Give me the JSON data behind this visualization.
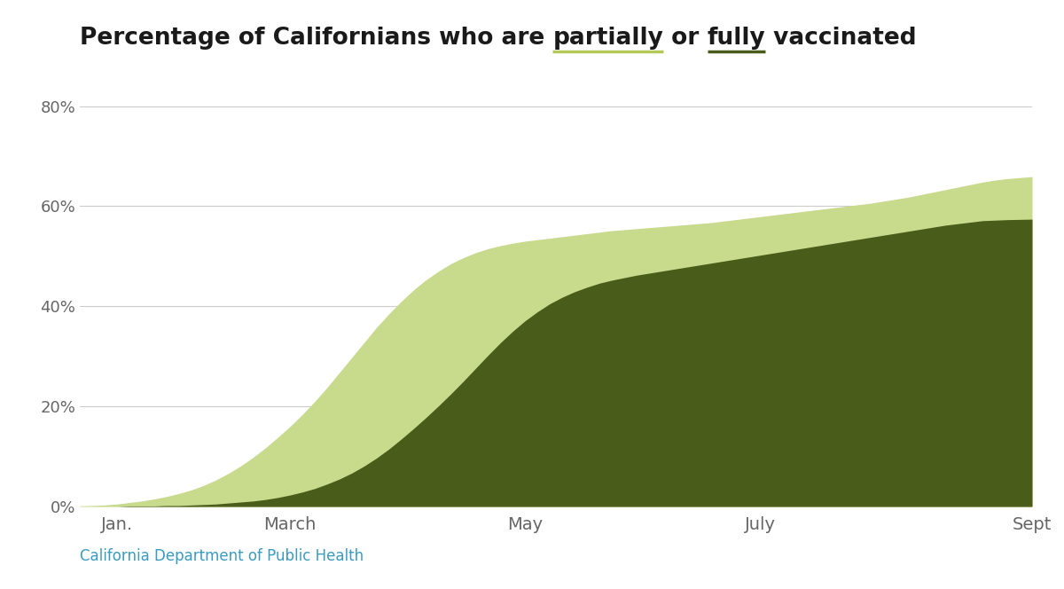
{
  "color_partial": "#c8da8c",
  "color_fully": "#4a5c1a",
  "color_partial_underline": "#b5c85a",
  "color_fully_underline": "#4a5c1a",
  "title_fontsize": 19,
  "source_text": "California Department of Public Health",
  "source_color": "#3a9bbf",
  "background_color": "#ffffff",
  "yticks": [
    0,
    20,
    40,
    60,
    80
  ],
  "xtick_labels": [
    "Jan.",
    "March",
    "May",
    "July",
    "Sept"
  ],
  "partial_data": [
    0.1,
    0.2,
    0.3,
    0.5,
    0.8,
    1.1,
    1.5,
    2.0,
    2.6,
    3.3,
    4.2,
    5.3,
    6.6,
    8.1,
    9.8,
    11.7,
    13.8,
    16.0,
    18.4,
    21.0,
    23.8,
    26.8,
    29.8,
    32.8,
    35.8,
    38.5,
    41.0,
    43.3,
    45.3,
    47.0,
    48.5,
    49.7,
    50.7,
    51.5,
    52.1,
    52.6,
    53.0,
    53.3,
    53.6,
    53.9,
    54.2,
    54.5,
    54.8,
    55.1,
    55.3,
    55.5,
    55.7,
    55.9,
    56.1,
    56.3,
    56.5,
    56.7,
    57.0,
    57.3,
    57.6,
    57.9,
    58.2,
    58.5,
    58.8,
    59.1,
    59.4,
    59.7,
    60.0,
    60.3,
    60.6,
    61.0,
    61.4,
    61.8,
    62.3,
    62.8,
    63.3,
    63.8,
    64.3,
    64.8,
    65.2,
    65.5,
    65.7,
    65.9
  ],
  "fully_data": [
    0.0,
    0.0,
    0.0,
    0.0,
    0.1,
    0.1,
    0.1,
    0.2,
    0.2,
    0.3,
    0.4,
    0.5,
    0.7,
    0.9,
    1.1,
    1.4,
    1.8,
    2.3,
    2.9,
    3.6,
    4.5,
    5.5,
    6.7,
    8.1,
    9.7,
    11.5,
    13.5,
    15.6,
    17.8,
    20.1,
    22.5,
    25.0,
    27.6,
    30.2,
    32.7,
    35.0,
    37.1,
    38.9,
    40.5,
    41.8,
    42.9,
    43.8,
    44.6,
    45.2,
    45.7,
    46.2,
    46.6,
    47.0,
    47.4,
    47.8,
    48.2,
    48.6,
    49.0,
    49.4,
    49.8,
    50.2,
    50.6,
    51.0,
    51.4,
    51.8,
    52.2,
    52.6,
    53.0,
    53.4,
    53.8,
    54.2,
    54.6,
    55.0,
    55.4,
    55.8,
    56.2,
    56.5,
    56.8,
    57.1,
    57.2,
    57.3,
    57.35,
    57.4
  ],
  "n_points": 78
}
